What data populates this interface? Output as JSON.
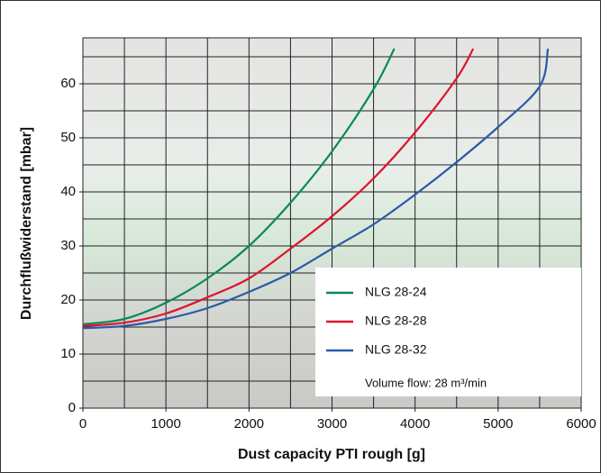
{
  "chart_data": {
    "type": "line",
    "xlabel": "Dust capacity PTI rough [g]",
    "ylabel": "Durchflußwiderstand [mbar]",
    "annotation": "Volume flow: 28 m³/min",
    "xlim": [
      0,
      6000
    ],
    "ylim": [
      0,
      68.5
    ],
    "xticks": [
      0,
      1000,
      2000,
      3000,
      4000,
      5000,
      6000
    ],
    "yticks": [
      0,
      10,
      20,
      30,
      40,
      50,
      60
    ],
    "xgrid": [
      0,
      500,
      1000,
      1500,
      2000,
      2500,
      3000,
      3500,
      4000,
      4500,
      5000,
      5500,
      6000
    ],
    "ygrid": [
      0,
      5,
      10,
      15,
      20,
      25,
      30,
      35,
      40,
      45,
      50,
      55,
      60,
      65
    ],
    "series": [
      {
        "name": "NLG 28-24",
        "color": "#0a8a55",
        "x": [
          0,
          500,
          1000,
          1500,
          2000,
          2500,
          3000,
          3500,
          3750
        ],
        "values": [
          15.5,
          16.5,
          19.5,
          24,
          30,
          38,
          47.5,
          59,
          66.5
        ]
      },
      {
        "name": "NLG 28-28",
        "color": "#e0132e",
        "x": [
          0,
          500,
          1000,
          1500,
          2000,
          2500,
          3000,
          3500,
          4000,
          4500,
          4700
        ],
        "values": [
          15.2,
          15.8,
          17.5,
          20.5,
          24,
          29.5,
          35.5,
          42.5,
          51,
          61,
          66.5
        ]
      },
      {
        "name": "NLG 28-32",
        "color": "#2a5ba8",
        "x": [
          0,
          500,
          1000,
          1500,
          2000,
          2500,
          3000,
          3500,
          4000,
          4500,
          5000,
          5500,
          5600
        ],
        "values": [
          14.8,
          15.2,
          16.5,
          18.5,
          21.5,
          25,
          29.5,
          34,
          39.5,
          45.5,
          52,
          59.5,
          66.5
        ]
      }
    ]
  }
}
